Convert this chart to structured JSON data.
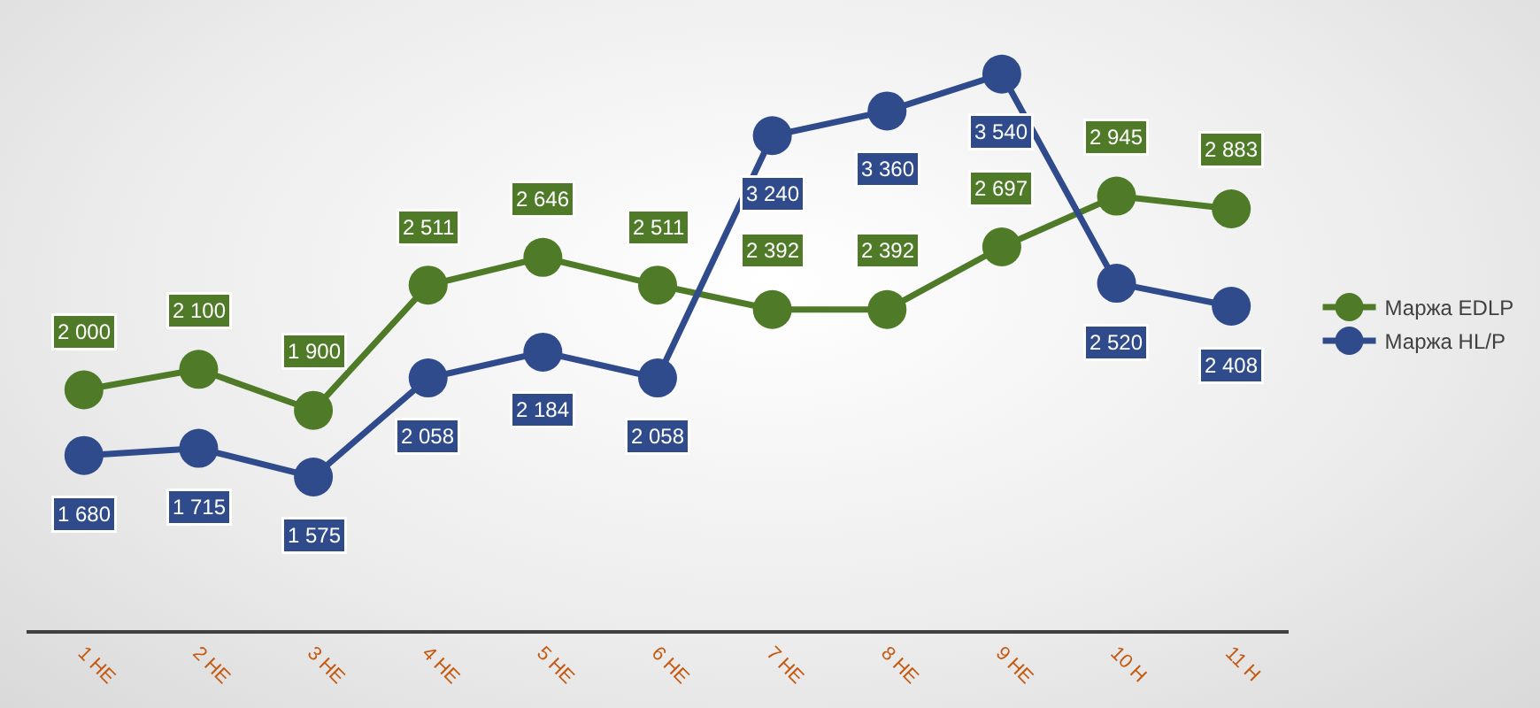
{
  "chart_data": {
    "type": "line",
    "categories": [
      "1 НЕ",
      "2 НЕ",
      "3 НЕ",
      "4 НЕ",
      "5 НЕ",
      "6 НЕ",
      "7 НЕ",
      "8 НЕ",
      "9 НЕ",
      "10 Н",
      "11 Н"
    ],
    "series": [
      {
        "name": "Маржа EDLP",
        "color": "#4f7a28",
        "values": [
          2000,
          2100,
          1900,
          2511,
          2646,
          2511,
          2392,
          2392,
          2697,
          2945,
          2883
        ],
        "value_labels": [
          "2 000",
          "2 100",
          "1 900",
          "2 511",
          "2 646",
          "2 511",
          "2 392",
          "2 392",
          "2 697",
          "2 945",
          "2 883"
        ]
      },
      {
        "name": "Маржа HL/P",
        "color": "#2f4b8c",
        "values": [
          1680,
          1715,
          1575,
          2058,
          2184,
          2058,
          3240,
          3360,
          3540,
          2520,
          2408
        ],
        "value_labels": [
          "1 680",
          "1 715",
          "1 575",
          "2 058",
          "2 184",
          "2 058",
          "3 240",
          "3 360",
          "3 540",
          "2 520",
          "2 408"
        ]
      }
    ],
    "marker": "circle",
    "line_style": "solid",
    "legend": "right",
    "grid": false,
    "tick_labels": "x"
  }
}
